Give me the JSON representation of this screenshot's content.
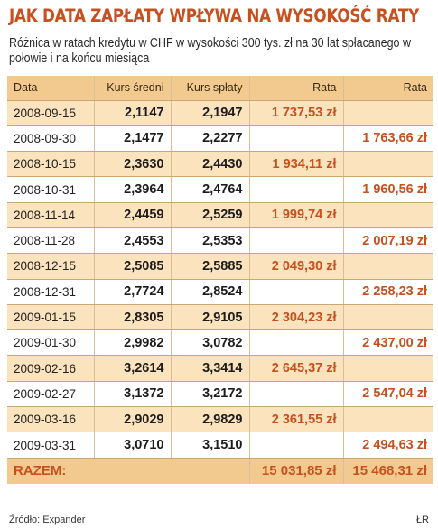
{
  "chart_data": {
    "type": "table",
    "title": "JAK DATA ZAPŁATY WPŁYWA NA WYSOKOŚĆ RATY",
    "subtitle": "Różnica w ratach kredytu w CHF w wysokości 300 tys. zł na 30 lat spłacanego w połowie i na końcu miesiąca",
    "columns": [
      "Data",
      "Kurs średni",
      "Kurs spłaty",
      "Rata",
      "Rata"
    ],
    "rows": [
      {
        "date": "2008-09-15",
        "kurs_sredni": "2,1147",
        "kurs_splaty": "2,1947",
        "rata_mid": "1 737,53 zł",
        "rata_end": ""
      },
      {
        "date": "2008-09-30",
        "kurs_sredni": "2,1477",
        "kurs_splaty": "2,2277",
        "rata_mid": "",
        "rata_end": "1 763,66 zł"
      },
      {
        "date": "2008-10-15",
        "kurs_sredni": "2,3630",
        "kurs_splaty": "2,4430",
        "rata_mid": "1 934,11 zł",
        "rata_end": ""
      },
      {
        "date": "2008-10-31",
        "kurs_sredni": "2,3964",
        "kurs_splaty": "2,4764",
        "rata_mid": "",
        "rata_end": "1 960,56 zł"
      },
      {
        "date": "2008-11-14",
        "kurs_sredni": "2,4459",
        "kurs_splaty": "2,5259",
        "rata_mid": "1 999,74 zł",
        "rata_end": ""
      },
      {
        "date": "2008-11-28",
        "kurs_sredni": "2,4553",
        "kurs_splaty": "2,5353",
        "rata_mid": "",
        "rata_end": "2 007,19 zł"
      },
      {
        "date": "2008-12-15",
        "kurs_sredni": "2,5085",
        "kurs_splaty": "2,5885",
        "rata_mid": "2 049,30 zł",
        "rata_end": ""
      },
      {
        "date": "2008-12-31",
        "kurs_sredni": "2,7724",
        "kurs_splaty": "2,8524",
        "rata_mid": "",
        "rata_end": "2 258,23 zł"
      },
      {
        "date": "2009-01-15",
        "kurs_sredni": "2,8305",
        "kurs_splaty": "2,9105",
        "rata_mid": "2 304,23 zł",
        "rata_end": ""
      },
      {
        "date": "2009-01-30",
        "kurs_sredni": "2,9982",
        "kurs_splaty": "3,0782",
        "rata_mid": "",
        "rata_end": "2 437,00 zł"
      },
      {
        "date": "2009-02-16",
        "kurs_sredni": "3,2614",
        "kurs_splaty": "3,3414",
        "rata_mid": "2 645,37 zł",
        "rata_end": ""
      },
      {
        "date": "2009-02-27",
        "kurs_sredni": "3,1372",
        "kurs_splaty": "3,2172",
        "rata_mid": "",
        "rata_end": "2 547,04 zł"
      },
      {
        "date": "2009-03-16",
        "kurs_sredni": "2,9029",
        "kurs_splaty": "2,9829",
        "rata_mid": "2 361,55 zł",
        "rata_end": ""
      },
      {
        "date": "2009-03-31",
        "kurs_sredni": "3,0710",
        "kurs_splaty": "3,1510",
        "rata_mid": "",
        "rata_end": "2 494,63 zł"
      }
    ],
    "total": {
      "label": "RAZEM:",
      "rata_mid": "15 031,85 zł",
      "rata_end": "15 468,31 zł"
    },
    "source": "Źródło: Expander",
    "author": "ŁR"
  },
  "colors": {
    "accent": "#c8501e",
    "header_bg": "#f2ca8f",
    "stripe_bg": "#fbe3bd"
  }
}
